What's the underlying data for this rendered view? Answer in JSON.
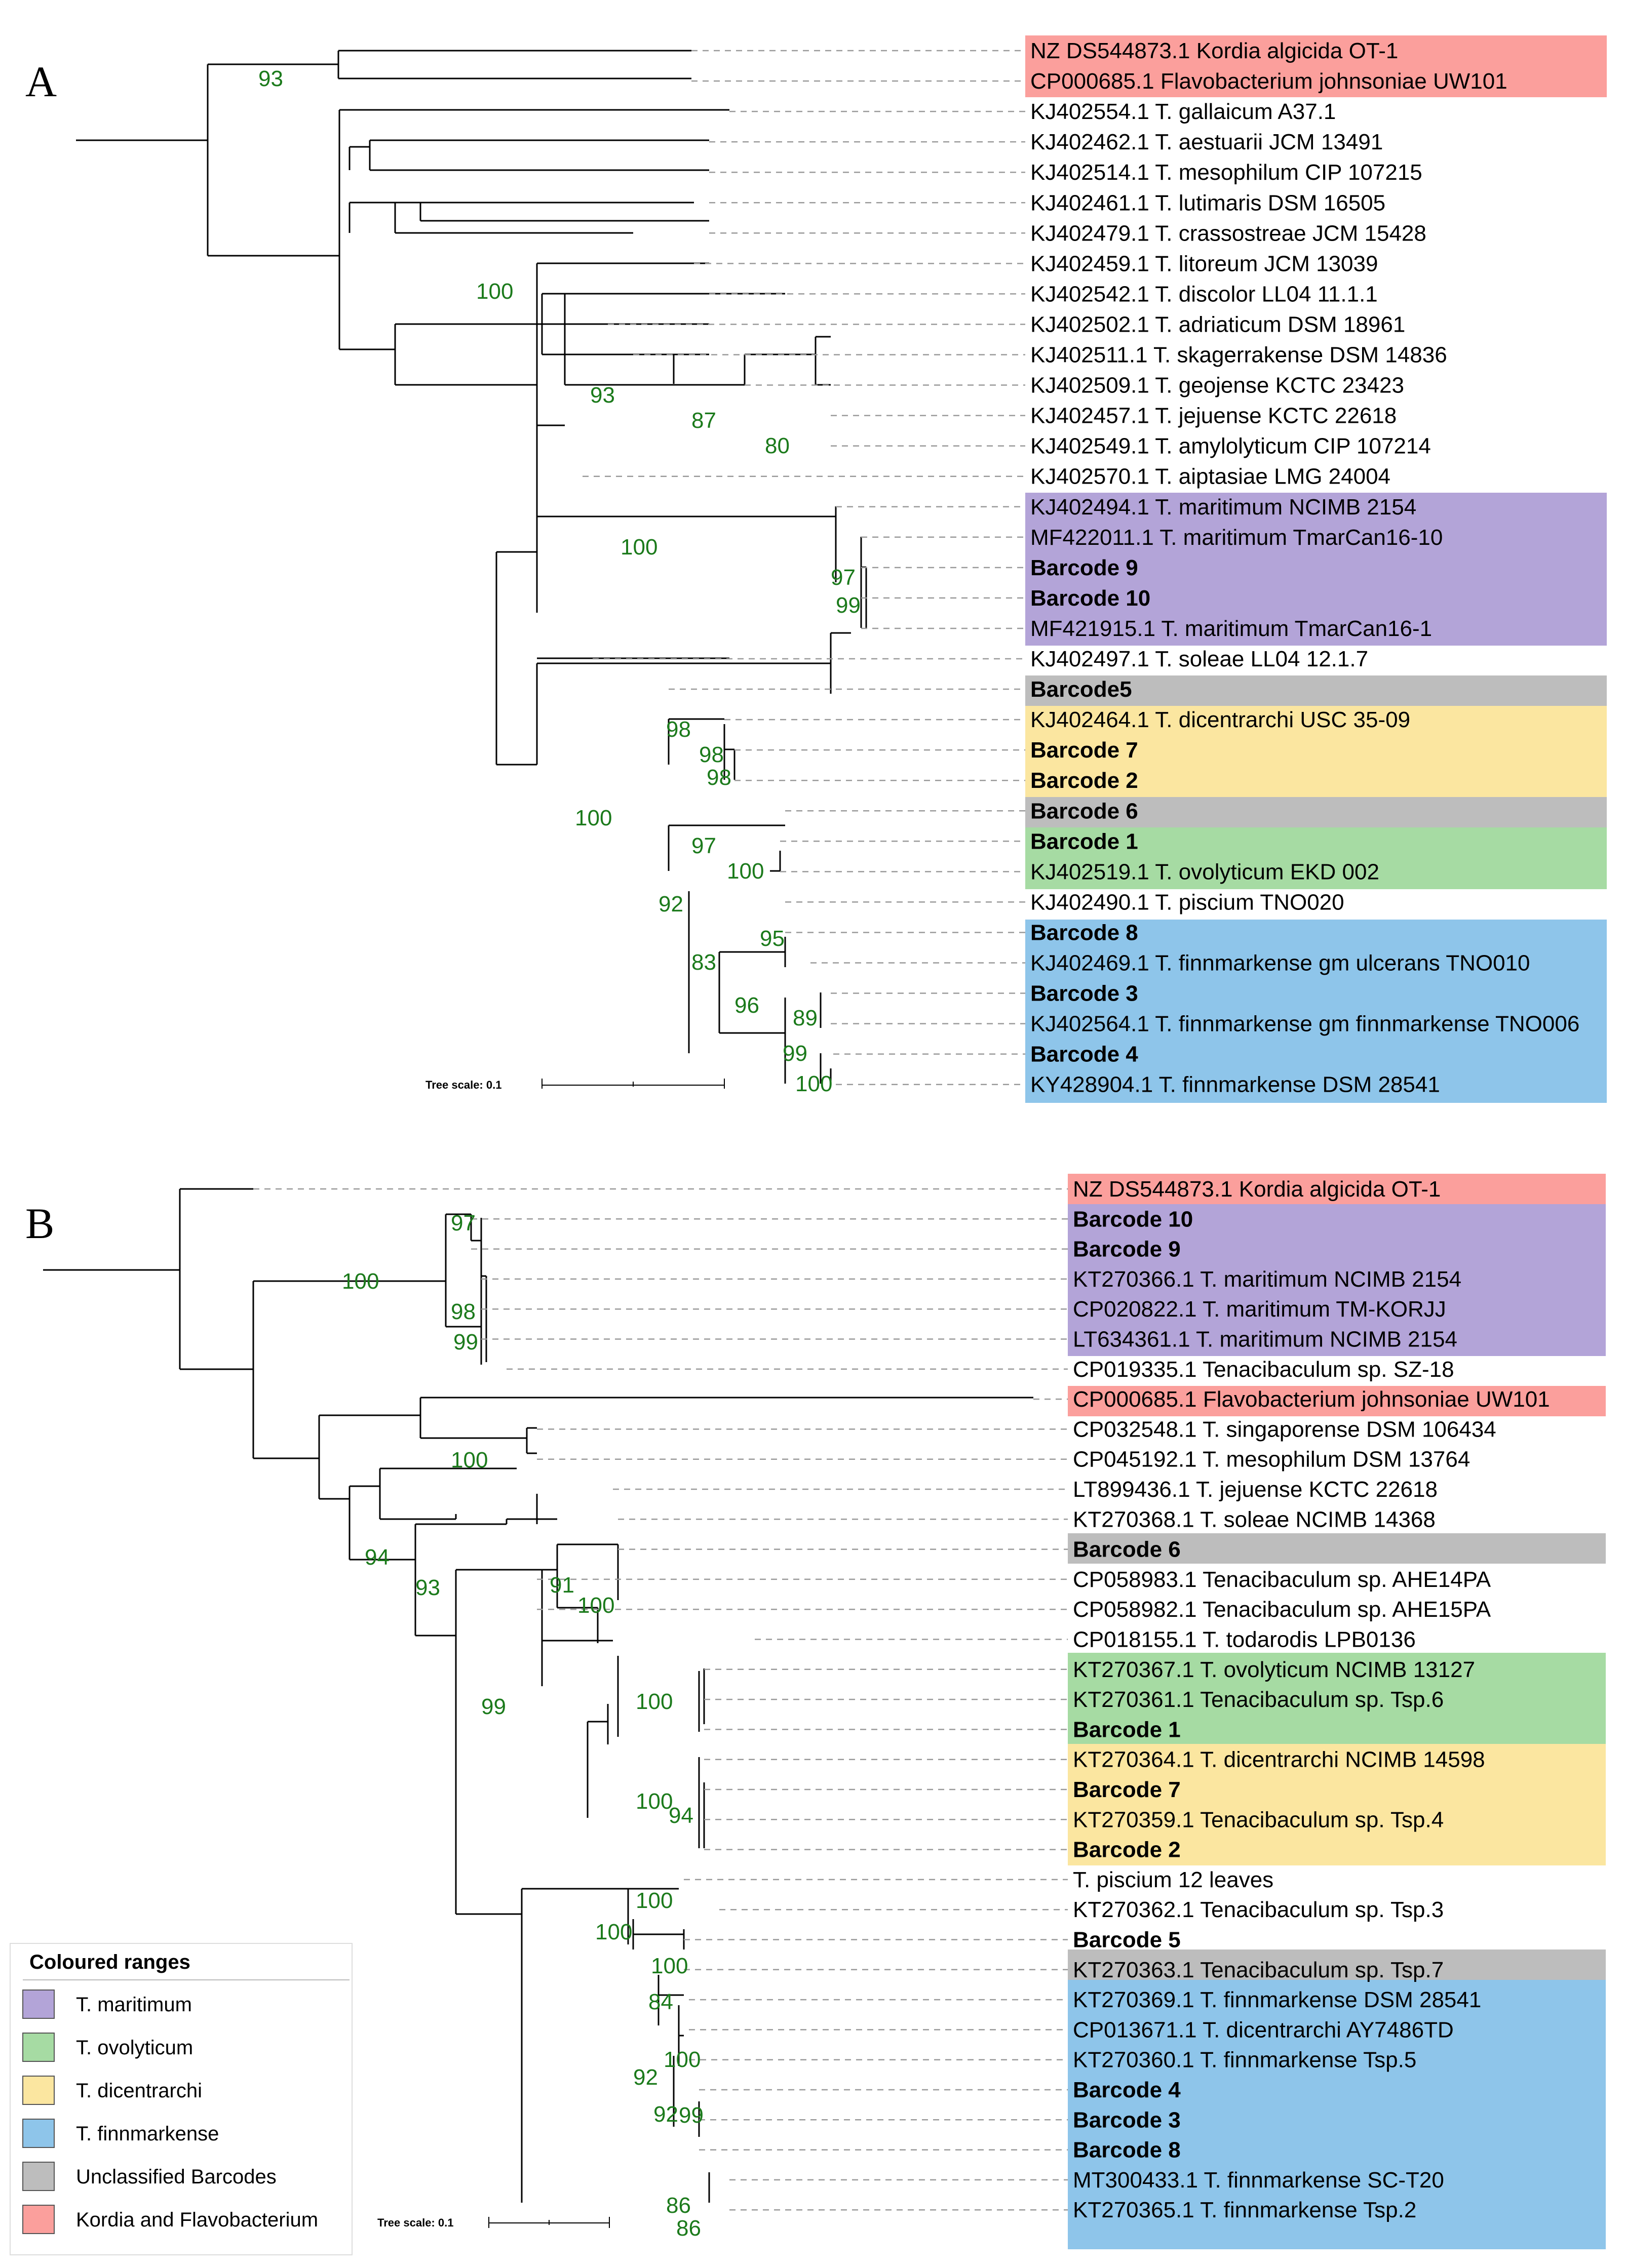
{
  "panels": {
    "a": {
      "letter": "A",
      "taxa": [
        "NZ DS544873.1 Kordia algicida OT-1",
        "CP000685.1 Flavobacterium johnsoniae UW101",
        "KJ402554.1 T. gallaicum A37.1",
        "KJ402462.1 T. aestuarii JCM 13491",
        "KJ402514.1 T. mesophilum CIP 107215",
        "KJ402461.1 T. lutimaris DSM 16505",
        "KJ402479.1 T. crassostreae JCM 15428",
        "KJ402459.1 T. litoreum JCM 13039",
        "KJ402542.1 T. discolor LL04 11.1.1",
        "KJ402502.1 T. adriaticum DSM 18961",
        "KJ402511.1 T. skagerrakense DSM 14836",
        "KJ402509.1 T. geojense KCTC 23423",
        "KJ402457.1 T. jejuense KCTC 22618",
        "KJ402549.1 T. amylolyticum CIP 107214",
        "KJ402570.1 T. aiptasiae LMG 24004",
        "KJ402494.1 T. maritimum NCIMB 2154",
        "MF422011.1 T. maritimum TmarCan16-10",
        "Barcode 9",
        "Barcode 10",
        "MF421915.1 T. maritimum TmarCan16-1",
        "KJ402497.1 T. soleae LL04 12.1.7",
        "Barcode5",
        "KJ402464.1 T. dicentrarchi USC 35-09",
        "Barcode 7",
        "Barcode 2",
        "Barcode 6",
        "Barcode 1",
        "KJ402519.1 T. ovolyticum EKD 002",
        "KJ402490.1 T. piscium TNO020",
        "Barcode 8",
        "KJ402469.1 T. finnmarkense gm ulcerans TNO010",
        "Barcode 3",
        "KJ402564.1 T. finnmarkense gm finnmarkense TNO006",
        "Barcode 4",
        "KY428904.1 T. finnmarkense DSM 28541"
      ],
      "support": [
        "93",
        "100",
        "93",
        "87",
        "80",
        "100",
        "97",
        "99",
        "98",
        "98",
        "98",
        "100",
        "97",
        "100",
        "92",
        "95",
        "83",
        "96",
        "89",
        "99",
        "100"
      ],
      "scale_label": "Tree scale: 0.1"
    },
    "b": {
      "letter": "B",
      "taxa": [
        "NZ DS544873.1 Kordia algicida OT-1",
        "Barcode 10",
        "Barcode 9",
        "KT270366.1 T. maritimum NCIMB 2154",
        "CP020822.1 T. maritimum TM-KORJJ",
        "LT634361.1 T. maritimum NCIMB 2154",
        "CP019335.1 Tenacibaculum sp. SZ-18",
        "CP000685.1 Flavobacterium johnsoniae UW101",
        "CP032548.1 T. singaporense DSM 106434",
        "CP045192.1 T. mesophilum DSM 13764",
        "LT899436.1 T. jejuense KCTC 22618",
        "KT270368.1 T. soleae NCIMB 14368",
        "Barcode 6",
        "CP058983.1 Tenacibaculum sp. AHE14PA",
        "CP058982.1 Tenacibaculum sp. AHE15PA",
        "CP018155.1 T. todarodis LPB0136",
        "KT270367.1 T. ovolyticum NCIMB 13127",
        "KT270361.1 Tenacibaculum sp. Tsp.6",
        "Barcode 1",
        "KT270364.1 T. dicentrarchi NCIMB 14598",
        "Barcode 7",
        "KT270359.1 Tenacibaculum sp. Tsp.4",
        "Barcode 2",
        "T. piscium 12 leaves",
        "KT270362.1 Tenacibaculum sp. Tsp.3",
        "Barcode 5",
        "KT270363.1 Tenacibaculum sp. Tsp.7",
        "KT270369.1 T. finnmarkense DSM 28541",
        "CP013671.1 T. dicentrarchi AY7486TD",
        "KT270360.1 T. finnmarkense Tsp.5",
        "Barcode 4",
        "Barcode 3",
        "Barcode 8",
        "MT300433.1 T. finnmarkense SC-T20",
        "KT270365.1 T. finnmarkense Tsp.2"
      ],
      "support": [
        "97",
        "100",
        "98",
        "99",
        "100",
        "94",
        "93",
        "99",
        "91",
        "100",
        "100",
        "100",
        "94",
        "100",
        "100",
        "100",
        "84",
        "100",
        "92",
        "92",
        "99",
        "86",
        "86"
      ],
      "scale_label": "Tree scale: 0.1"
    }
  },
  "legend": {
    "title": "Coloured ranges",
    "items": [
      "T. maritimum",
      "T. ovolyticum",
      "T. dicentrarchi",
      "T. finnmarkense",
      "Unclassified Barcodes",
      "Kordia and Flavobacterium"
    ]
  },
  "colors": {
    "maritimum": "#b3a4d8",
    "ovolyticum": "#a6dba3",
    "dicentrarchi": "#fbe6a0",
    "finnmarkense": "#8ec5ea",
    "unclassified": "#bdbdbd",
    "kordia": "#fb9f9c",
    "support": "#1b7a1b"
  }
}
